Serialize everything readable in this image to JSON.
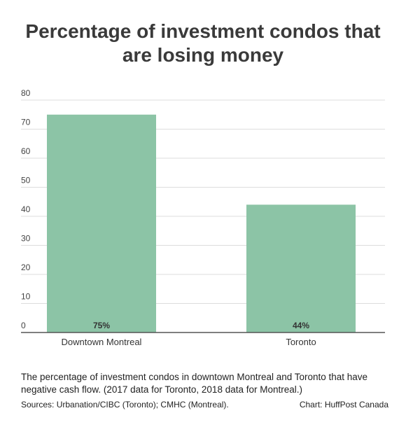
{
  "title_lines": [
    "Percentage of investment condos that",
    "are losing money"
  ],
  "caption": "The percentage of investment condos in downtown Montreal and Toronto that have negative cash flow. (2017 data for Toronto, 2018 data for Montreal.)",
  "sources": "Sources: Urbanation/CIBC (Toronto); CMHC (Montreal).",
  "credit": "Chart: HuffPost Canada",
  "colors": {
    "bar": "#8cc4a6",
    "grid": "#dddddd",
    "axis": "#555555"
  },
  "chart_data": {
    "type": "bar",
    "title": "Percentage of investment condos that are losing money",
    "categories": [
      "Downtown Montreal",
      "Toronto"
    ],
    "values": [
      75,
      44
    ],
    "value_labels": [
      "75%",
      "44%"
    ],
    "yticks": [
      0,
      10,
      20,
      30,
      40,
      50,
      60,
      70,
      80
    ],
    "ylim": [
      0,
      80
    ],
    "xlabel": "",
    "ylabel": "",
    "grid": true,
    "legend": "none"
  }
}
